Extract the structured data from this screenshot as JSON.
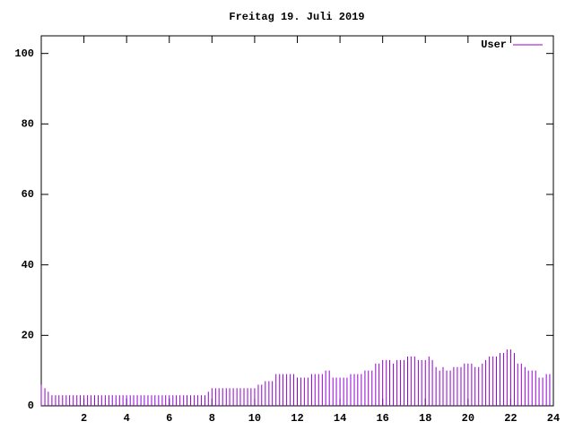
{
  "chart_data": {
    "type": "impulse",
    "title": "Freitag 19. Juli 2019",
    "x": [
      0,
      0.17,
      0.33,
      0.5,
      0.67,
      0.83,
      1,
      1.17,
      1.33,
      1.5,
      1.67,
      1.83,
      2,
      2.17,
      2.33,
      2.5,
      2.67,
      2.83,
      3,
      3.17,
      3.33,
      3.5,
      3.67,
      3.83,
      4,
      4.17,
      4.33,
      4.5,
      4.67,
      4.83,
      5,
      5.17,
      5.33,
      5.5,
      5.67,
      5.83,
      6,
      6.17,
      6.33,
      6.5,
      6.67,
      6.83,
      7,
      7.17,
      7.33,
      7.5,
      7.67,
      7.83,
      8,
      8.17,
      8.33,
      8.5,
      8.67,
      8.83,
      9,
      9.17,
      9.33,
      9.5,
      9.67,
      9.83,
      10,
      10.17,
      10.33,
      10.5,
      10.67,
      10.83,
      11,
      11.17,
      11.33,
      11.5,
      11.67,
      11.83,
      12,
      12.17,
      12.33,
      12.5,
      12.67,
      12.83,
      13,
      13.17,
      13.33,
      13.5,
      13.67,
      13.83,
      14,
      14.17,
      14.33,
      14.5,
      14.67,
      14.83,
      15,
      15.17,
      15.33,
      15.5,
      15.67,
      15.83,
      16,
      16.17,
      16.33,
      16.5,
      16.67,
      16.83,
      17,
      17.17,
      17.33,
      17.5,
      17.67,
      17.83,
      18,
      18.17,
      18.33,
      18.5,
      18.67,
      18.83,
      19,
      19.17,
      19.33,
      19.5,
      19.67,
      19.83,
      20,
      20.17,
      20.33,
      20.5,
      20.67,
      20.83,
      21,
      21.17,
      21.33,
      21.5,
      21.67,
      21.83,
      22,
      22.17,
      22.33,
      22.5,
      22.67,
      22.83,
      23,
      23.17,
      23.33,
      23.5,
      23.67,
      23.83
    ],
    "series": [
      {
        "name": "User",
        "color": "#9400d3",
        "values": [
          6,
          5,
          4,
          3,
          3,
          3,
          3,
          3,
          3,
          3,
          3,
          3,
          3,
          3,
          3,
          3,
          3,
          3,
          3,
          3,
          3,
          3,
          3,
          3,
          3,
          3,
          3,
          3,
          3,
          3,
          3,
          3,
          3,
          3,
          3,
          3,
          3,
          3,
          3,
          3,
          3,
          3,
          3,
          3,
          3,
          3,
          3,
          4,
          5,
          5,
          5,
          5,
          5,
          5,
          5,
          5,
          5,
          5,
          5,
          5,
          5,
          6,
          6,
          7,
          7,
          7,
          9,
          9,
          9,
          9,
          9,
          9,
          8,
          8,
          8,
          8,
          9,
          9,
          9,
          9,
          10,
          10,
          8,
          8,
          8,
          8,
          8,
          9,
          9,
          9,
          9,
          10,
          10,
          10,
          12,
          12,
          13,
          13,
          13,
          12,
          13,
          13,
          13,
          14,
          14,
          14,
          13,
          13,
          13,
          14,
          13,
          11,
          10,
          11,
          10,
          10,
          11,
          11,
          11,
          12,
          12,
          12,
          11,
          11,
          12,
          13,
          14,
          14,
          14,
          15,
          15,
          16,
          16,
          15,
          12,
          12,
          11,
          10,
          10,
          10,
          8,
          8,
          9,
          9
        ]
      }
    ],
    "xlim": [
      0,
      24
    ],
    "xticks": [
      2,
      4,
      6,
      8,
      10,
      12,
      14,
      16,
      18,
      20,
      22,
      24
    ],
    "ylim": [
      0,
      105
    ],
    "yticks": [
      0,
      20,
      40,
      60,
      80,
      100
    ],
    "legend": "top-right"
  }
}
